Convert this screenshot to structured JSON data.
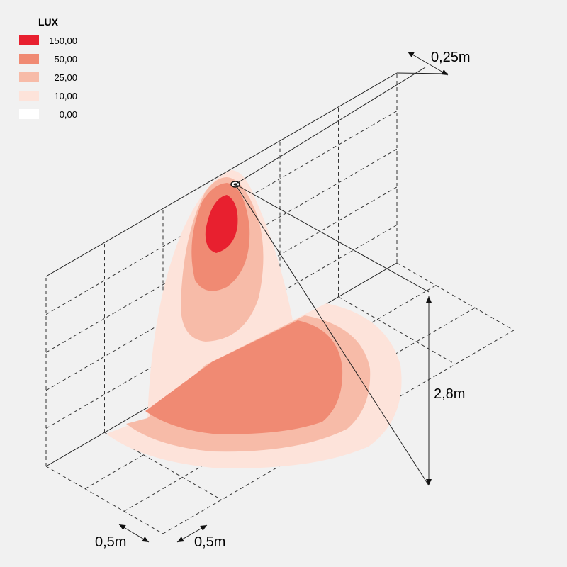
{
  "legend": {
    "title": "LUX",
    "items": [
      {
        "label": "150,00",
        "color": "#e8202f"
      },
      {
        "label": "50,00",
        "color": "#f08a73"
      },
      {
        "label": "25,00",
        "color": "#f7bba8"
      },
      {
        "label": "10,00",
        "color": "#fde3da"
      },
      {
        "label": "0,00",
        "color": "#ffffff"
      }
    ]
  },
  "dimensions": {
    "offset": "0,25m",
    "height": "2,8m",
    "grid_a": "0,5m",
    "grid_b": "0,5m"
  }
}
